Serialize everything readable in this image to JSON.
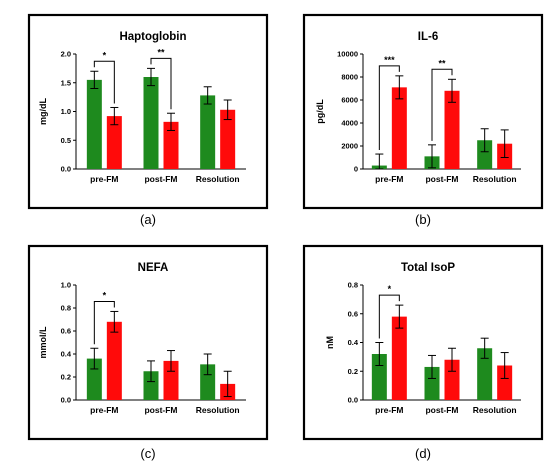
{
  "colors": {
    "group1": "#1e8a1e",
    "group2": "#ff0a0a"
  },
  "panels": [
    {
      "label": "(a)",
      "chart_data": {
        "type": "bar",
        "title": "Haptoglobin",
        "ylabel": "mg/dL",
        "categories": [
          "pre-FM",
          "post-FM",
          "Resolution"
        ],
        "ylim": [
          0,
          2.0
        ],
        "yticks": [
          "0.0",
          "0.5",
          "1.0",
          "1.5",
          "2.0"
        ],
        "series": [
          {
            "color": "#1e8a1e",
            "values": [
              1.55,
              1.6,
              1.28
            ],
            "errors": [
              0.15,
              0.15,
              0.15
            ]
          },
          {
            "color": "#ff0a0a",
            "values": [
              0.92,
              0.82,
              1.03
            ],
            "errors": [
              0.15,
              0.15,
              0.17
            ]
          }
        ],
        "significance": [
          {
            "category": 0,
            "label": "*"
          },
          {
            "category": 1,
            "label": "**"
          }
        ]
      }
    },
    {
      "label": "(b)",
      "chart_data": {
        "type": "bar",
        "title": "IL-6",
        "ylabel": "pg/dL",
        "categories": [
          "pre-FM",
          "post-FM",
          "Resolution"
        ],
        "ylim": [
          0,
          10000
        ],
        "yticks": [
          "0",
          "2000",
          "4000",
          "6000",
          "8000",
          "10000"
        ],
        "series": [
          {
            "color": "#1e8a1e",
            "values": [
              300,
              1100,
              2500
            ],
            "errors": [
              1000,
              1000,
              1000
            ]
          },
          {
            "color": "#ff0a0a",
            "values": [
              7100,
              6800,
              2200
            ],
            "errors": [
              1000,
              1000,
              1200
            ]
          }
        ],
        "significance": [
          {
            "category": 0,
            "label": "***"
          },
          {
            "category": 1,
            "label": "**"
          }
        ]
      }
    },
    {
      "label": "(c)",
      "chart_data": {
        "type": "bar",
        "title": "NEFA",
        "ylabel": "mmol/L",
        "categories": [
          "pre-FM",
          "post-FM",
          "Resolution"
        ],
        "ylim": [
          0,
          1.0
        ],
        "yticks": [
          "0.0",
          "0.2",
          "0.4",
          "0.6",
          "0.8",
          "1.0"
        ],
        "series": [
          {
            "color": "#1e8a1e",
            "values": [
              0.36,
              0.25,
              0.31
            ],
            "errors": [
              0.09,
              0.09,
              0.09
            ]
          },
          {
            "color": "#ff0a0a",
            "values": [
              0.68,
              0.34,
              0.14
            ],
            "errors": [
              0.09,
              0.09,
              0.11
            ]
          }
        ],
        "significance": [
          {
            "category": 0,
            "label": "*"
          }
        ]
      }
    },
    {
      "label": "(d)",
      "chart_data": {
        "type": "bar",
        "title": "Total IsoP",
        "ylabel": "nM",
        "categories": [
          "pre-FM",
          "post-FM",
          "Resolution"
        ],
        "ylim": [
          0,
          0.8
        ],
        "yticks": [
          "0.0",
          "0.2",
          "0.4",
          "0.6",
          "0.8"
        ],
        "series": [
          {
            "color": "#1e8a1e",
            "values": [
              0.32,
              0.23,
              0.36
            ],
            "errors": [
              0.08,
              0.08,
              0.07
            ]
          },
          {
            "color": "#ff0a0a",
            "values": [
              0.58,
              0.28,
              0.24
            ],
            "errors": [
              0.08,
              0.08,
              0.09
            ]
          }
        ],
        "significance": [
          {
            "category": 0,
            "label": "*"
          }
        ]
      }
    }
  ]
}
